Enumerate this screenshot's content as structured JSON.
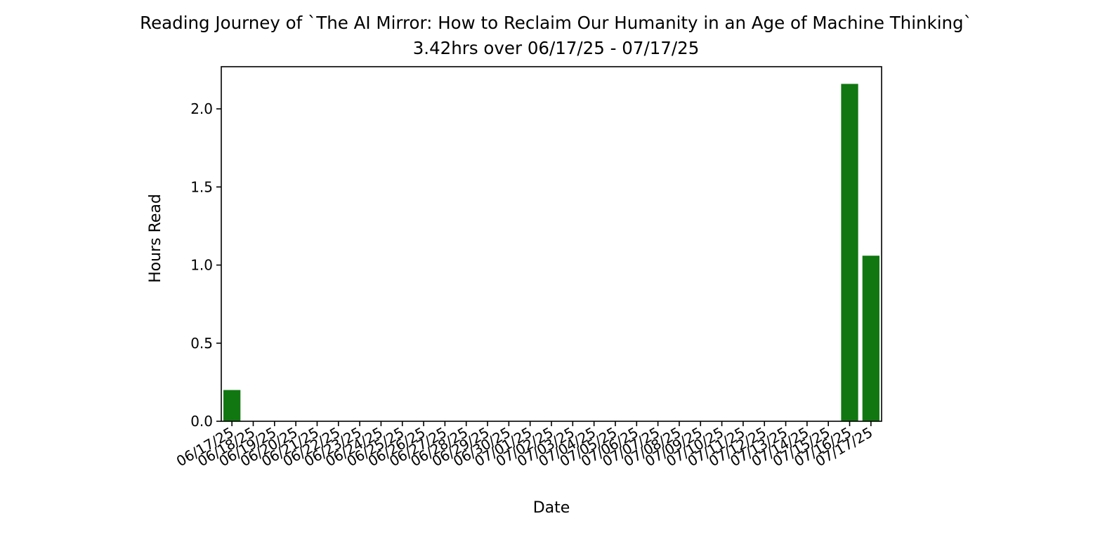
{
  "chart_data": {
    "type": "bar",
    "title": "Reading Journey of `The AI Mirror: How to Reclaim Our Humanity in an Age of Machine Thinking`",
    "subtitle": "3.42hrs over 06/17/25 - 07/17/25",
    "xlabel": "Date",
    "ylabel": "Hours Read",
    "ylim": [
      0,
      2.27
    ],
    "yticks": [
      0.0,
      0.5,
      1.0,
      1.5,
      2.0
    ],
    "ytick_labels": [
      "0.0",
      "0.5",
      "1.0",
      "1.5",
      "2.0"
    ],
    "grid": false,
    "legend": "none",
    "bar_color": "#117711",
    "categories": [
      "06/17/25",
      "06/18/25",
      "06/19/25",
      "06/20/25",
      "06/21/25",
      "06/22/25",
      "06/23/25",
      "06/24/25",
      "06/25/25",
      "06/26/25",
      "06/27/25",
      "06/28/25",
      "06/29/25",
      "06/30/25",
      "07/01/25",
      "07/02/25",
      "07/03/25",
      "07/04/25",
      "07/05/25",
      "07/06/25",
      "07/07/25",
      "07/08/25",
      "07/09/25",
      "07/10/25",
      "07/11/25",
      "07/12/25",
      "07/13/25",
      "07/14/25",
      "07/15/25",
      "07/16/25",
      "07/17/25"
    ],
    "values": [
      0.2,
      0,
      0,
      0,
      0,
      0,
      0,
      0,
      0,
      0,
      0,
      0,
      0,
      0,
      0,
      0,
      0,
      0,
      0,
      0,
      0,
      0,
      0,
      0,
      0,
      0,
      0,
      0,
      0,
      2.16,
      1.06
    ]
  }
}
